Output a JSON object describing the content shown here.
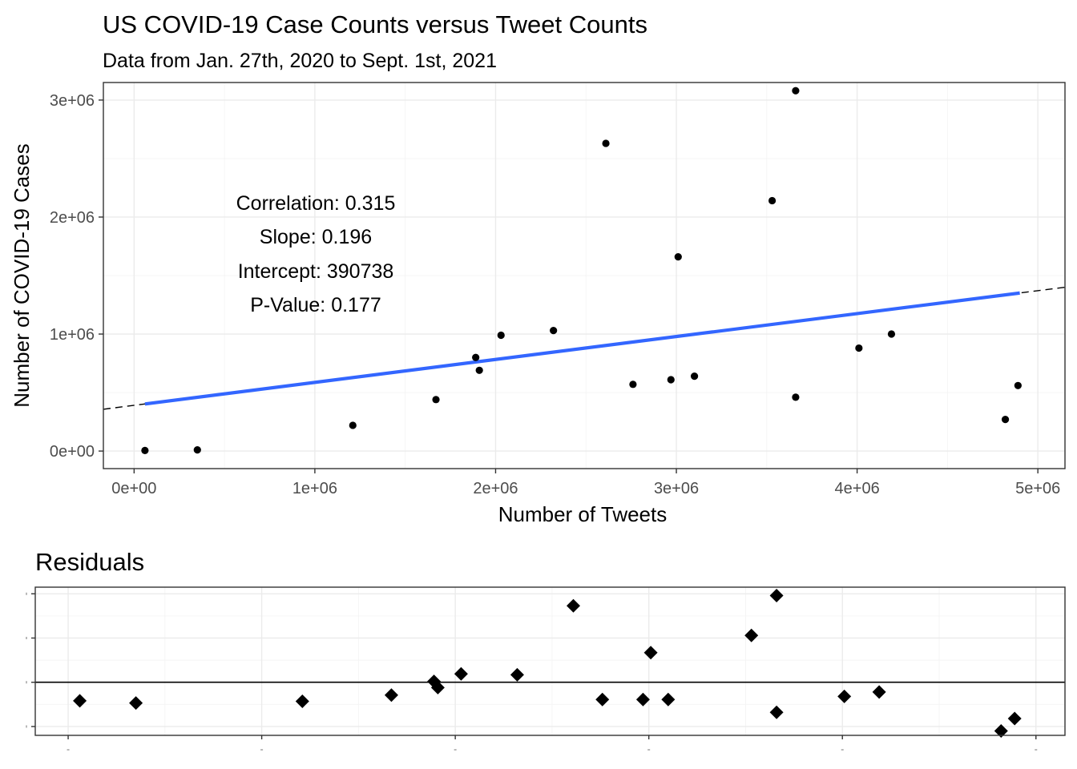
{
  "chart_data": [
    {
      "type": "scatter",
      "title": "US COVID-19 Case Counts versus Tweet Counts",
      "subtitle": "Data from Jan. 27th, 2020 to Sept. 1st, 2021",
      "xlabel": "Number of Tweets",
      "ylabel": "Number of COVID-19 Cases",
      "xlim": [
        -170000,
        5150000
      ],
      "ylim": [
        -150000,
        3150000
      ],
      "x_ticks": [
        0,
        1000000,
        2000000,
        3000000,
        4000000,
        5000000
      ],
      "x_tick_labels": [
        "0e+00",
        "1e+06",
        "2e+06",
        "3e+06",
        "4e+06",
        "5e+06"
      ],
      "y_ticks": [
        0,
        1000000,
        2000000,
        3000000
      ],
      "y_tick_labels": [
        "0e+00",
        "1e+06",
        "2e+06",
        "3e+06"
      ],
      "grid": true,
      "annotations": [
        "Correlation: 0.315",
        "Slope: 0.196",
        "Intercept: 390738",
        "P-Value: 0.177"
      ],
      "regression": {
        "slope": 0.196,
        "intercept": 390738,
        "fit_x_range": [
          60000,
          4900000
        ],
        "dashed_extension": true,
        "fit_color": "#3366ff"
      },
      "points": [
        {
          "x": 60000,
          "y": 5000
        },
        {
          "x": 350000,
          "y": 10000
        },
        {
          "x": 1210000,
          "y": 220000
        },
        {
          "x": 1670000,
          "y": 440000
        },
        {
          "x": 1890000,
          "y": 800000
        },
        {
          "x": 1910000,
          "y": 690000
        },
        {
          "x": 2030000,
          "y": 990000
        },
        {
          "x": 2320000,
          "y": 1030000
        },
        {
          "x": 2610000,
          "y": 2630000
        },
        {
          "x": 2760000,
          "y": 570000
        },
        {
          "x": 2970000,
          "y": 610000
        },
        {
          "x": 3010000,
          "y": 1660000
        },
        {
          "x": 3100000,
          "y": 640000
        },
        {
          "x": 3530000,
          "y": 2140000
        },
        {
          "x": 3660000,
          "y": 3080000
        },
        {
          "x": 3660000,
          "y": 460000
        },
        {
          "x": 4010000,
          "y": 880000
        },
        {
          "x": 4190000,
          "y": 1000000
        },
        {
          "x": 4820000,
          "y": 270000
        },
        {
          "x": 4890000,
          "y": 560000
        }
      ]
    },
    {
      "type": "scatter",
      "title": "Residuals",
      "xlim": [
        -170000,
        5150000
      ],
      "ylim": [
        -1200000,
        2150000
      ],
      "x_ticks": [
        0,
        1000000,
        2000000,
        3000000,
        4000000,
        5000000
      ],
      "y_ticks": [
        -1000000,
        0,
        1000000,
        2000000
      ],
      "zero_line": true,
      "marker": "diamond",
      "points": [
        {
          "x": 60000,
          "y": -420000
        },
        {
          "x": 350000,
          "y": -470000
        },
        {
          "x": 1210000,
          "y": -430000
        },
        {
          "x": 1670000,
          "y": -290000
        },
        {
          "x": 1890000,
          "y": 20000
        },
        {
          "x": 1910000,
          "y": -120000
        },
        {
          "x": 2030000,
          "y": 190000
        },
        {
          "x": 2320000,
          "y": 170000
        },
        {
          "x": 2610000,
          "y": 1730000
        },
        {
          "x": 2760000,
          "y": -390000
        },
        {
          "x": 2970000,
          "y": -390000
        },
        {
          "x": 3010000,
          "y": 670000
        },
        {
          "x": 3100000,
          "y": -390000
        },
        {
          "x": 3530000,
          "y": 1060000
        },
        {
          "x": 3660000,
          "y": 1960000
        },
        {
          "x": 3660000,
          "y": -680000
        },
        {
          "x": 4010000,
          "y": -320000
        },
        {
          "x": 4190000,
          "y": -220000
        },
        {
          "x": 4820000,
          "y": -1100000
        },
        {
          "x": 4890000,
          "y": -820000
        }
      ]
    }
  ]
}
